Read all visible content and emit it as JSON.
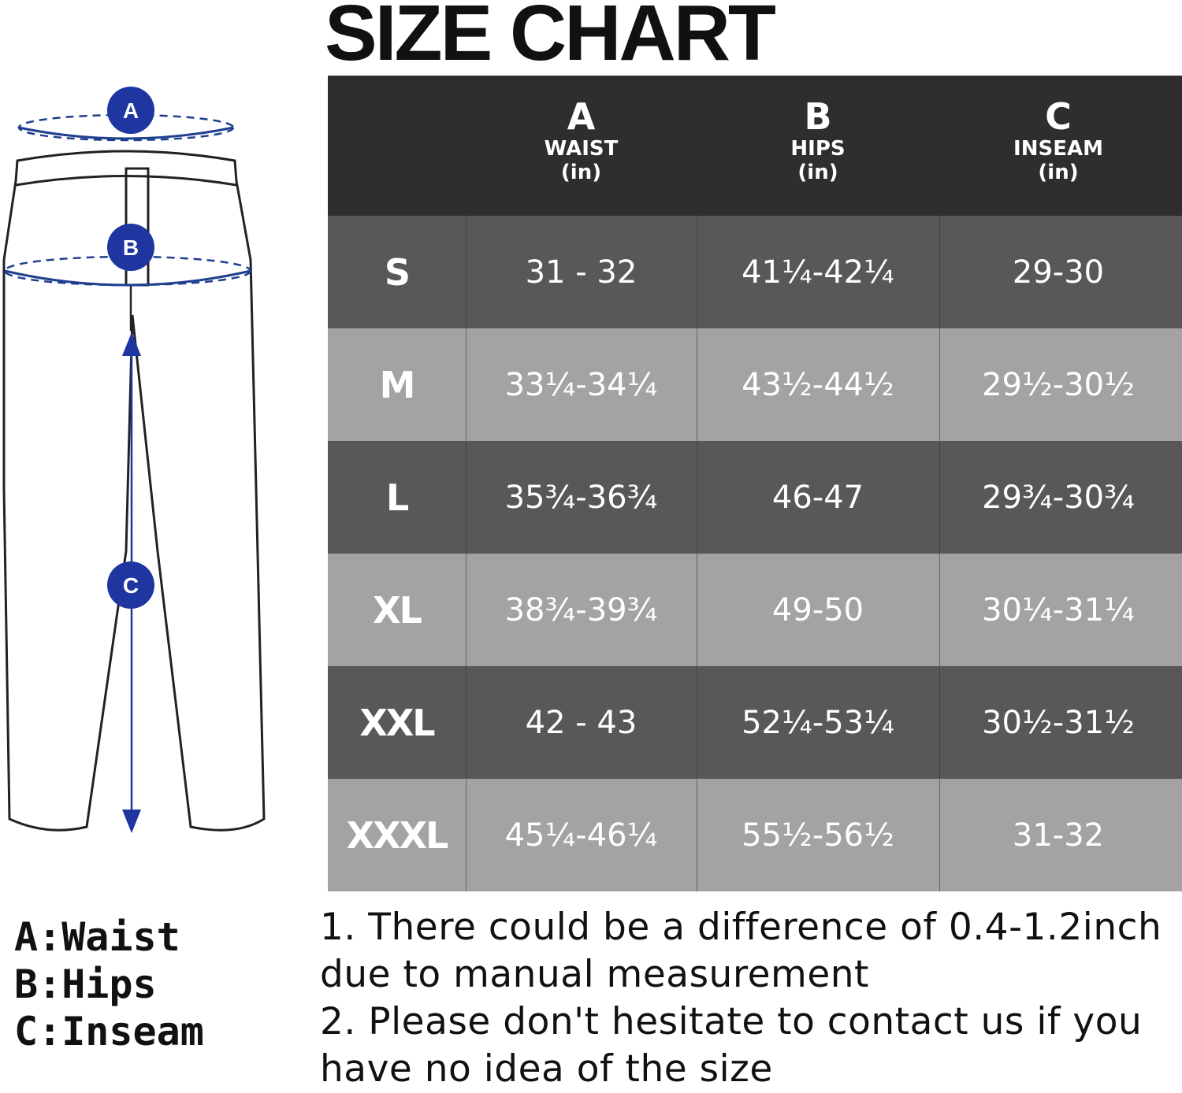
{
  "title": "SIZE CHART",
  "colors": {
    "header_bg": "#2e2e2e",
    "row_dark": "#585858",
    "row_light": "#a3a3a3",
    "marker_blue": "#1f35a0",
    "text_light": "#ffffff"
  },
  "figure": {
    "markers": [
      {
        "letter": "A",
        "meaning": "Waist"
      },
      {
        "letter": "B",
        "meaning": "Hips"
      },
      {
        "letter": "C",
        "meaning": "Inseam"
      }
    ]
  },
  "table": {
    "columns": [
      {
        "letter": "A",
        "name": "WAIST",
        "unit": "(in)"
      },
      {
        "letter": "B",
        "name": "HIPS",
        "unit": "(in)"
      },
      {
        "letter": "C",
        "name": "INSEAM",
        "unit": "(in)"
      }
    ],
    "rows": [
      {
        "size": "S",
        "waist": "31 - 32",
        "hips": "41¼-42¼",
        "inseam": "29-30"
      },
      {
        "size": "M",
        "waist": "33¼-34¼",
        "hips": "43½-44½",
        "inseam": "29½-30½"
      },
      {
        "size": "L",
        "waist": "35¾-36¾",
        "hips": "46-47",
        "inseam": "29¾-30¾"
      },
      {
        "size": "XL",
        "waist": "38¾-39¾",
        "hips": "49-50",
        "inseam": "30¼-31¼"
      },
      {
        "size": "XXL",
        "waist": "42 - 43",
        "hips": "52¼-53¼",
        "inseam": "30½-31½"
      },
      {
        "size": "XXXL",
        "waist": "45¼-46¼",
        "hips": "55½-56½",
        "inseam": "31-32"
      }
    ]
  },
  "legend": [
    "A:Waist",
    "B:Hips",
    "C:Inseam"
  ],
  "notes": [
    "1. There could be a difference of 0.4-1.2inch",
    "due to manual measurement",
    "2. Please don't hesitate to contact us if you",
    "have no idea of the size"
  ]
}
